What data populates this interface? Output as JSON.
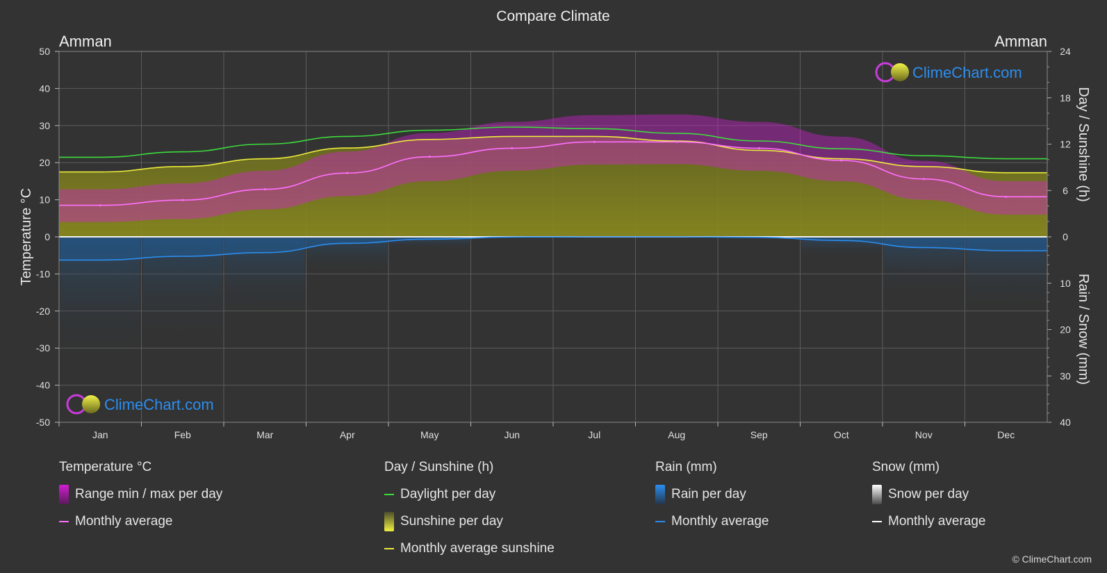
{
  "title": "Compare Climate",
  "location_left": "Amman",
  "location_right": "Amman",
  "watermark": "ClimeChart.com",
  "copyright": "© ClimeChart.com",
  "colors": {
    "background": "#333333",
    "grid": "#5c5c5c",
    "temp_range": "#d21ed2",
    "temp_avg": "#ff70ff",
    "daylight": "#3ddc3d",
    "sunshine_fill": "#8c8c1e",
    "sunshine_avg": "#ecec3c",
    "rain": "#1e5a96",
    "rain_avg": "#2b8ef0",
    "snow_avg": "#ffffff",
    "logo_text": "#2b8ef0"
  },
  "chart_data": {
    "type": "area",
    "title": "Compare Climate",
    "categories": [
      "Jan",
      "Feb",
      "Mar",
      "Apr",
      "May",
      "Jun",
      "Jul",
      "Aug",
      "Sep",
      "Oct",
      "Nov",
      "Dec"
    ],
    "axes": {
      "left": {
        "label": "Temperature °C",
        "min": -50,
        "max": 50,
        "ticks": [
          50,
          40,
          30,
          20,
          10,
          0,
          -10,
          -20,
          -30,
          -40,
          -50
        ]
      },
      "right_top": {
        "label": "Day / Sunshine (h)",
        "min": 0,
        "max": 24,
        "ticks": [
          24,
          18,
          12,
          6,
          0
        ]
      },
      "right_bottom": {
        "label": "Rain / Snow (mm)",
        "min": 0,
        "max": 40,
        "ticks": [
          10,
          20,
          30,
          40
        ]
      }
    },
    "grid": true,
    "series": [
      {
        "name": "Monthly average",
        "group": "Temperature °C",
        "unit": "°C",
        "values": [
          8.5,
          9.9,
          12.8,
          17.2,
          21.6,
          23.9,
          25.6,
          25.6,
          23.9,
          20.6,
          15.6,
          10.8
        ]
      },
      {
        "name": "Range max per day",
        "group": "Temperature °C",
        "unit": "°C",
        "values": [
          12.8,
          14.4,
          17.8,
          23.0,
          28.0,
          31.0,
          32.8,
          33.0,
          31.0,
          27.0,
          20.5,
          15.0
        ]
      },
      {
        "name": "Range min per day",
        "group": "Temperature °C",
        "unit": "°C",
        "values": [
          4.0,
          4.8,
          7.4,
          11.0,
          15.0,
          17.8,
          19.5,
          19.6,
          17.8,
          15.0,
          10.0,
          6.0
        ]
      },
      {
        "name": "Daylight per day",
        "group": "Day / Sunshine (h)",
        "unit": "h",
        "values": [
          10.3,
          11.0,
          12.0,
          13.0,
          13.8,
          14.2,
          14.0,
          13.4,
          12.4,
          11.4,
          10.5,
          10.1
        ]
      },
      {
        "name": "Monthly average sunshine",
        "group": "Day / Sunshine (h)",
        "unit": "h",
        "values": [
          8.4,
          9.1,
          10.1,
          11.5,
          12.6,
          13.0,
          13.0,
          12.4,
          11.2,
          10.1,
          9.1,
          8.3
        ]
      },
      {
        "name": "Monthly average",
        "group": "Rain (mm)",
        "unit": "mm",
        "values": [
          5.0,
          4.2,
          3.4,
          1.4,
          0.5,
          0.05,
          0.0,
          0.0,
          0.1,
          0.8,
          2.3,
          3.0
        ]
      },
      {
        "name": "Monthly average",
        "group": "Snow (mm)",
        "unit": "mm",
        "values": [
          0,
          0,
          0,
          0,
          0,
          0,
          0,
          0,
          0,
          0,
          0,
          0
        ]
      }
    ]
  },
  "legend": {
    "groups": [
      {
        "title": "Temperature °C",
        "items": [
          {
            "label": "Range min / max per day",
            "kind": "box",
            "color": "#d21ed2"
          },
          {
            "label": "Monthly average",
            "kind": "line",
            "color": "#ff70ff"
          }
        ]
      },
      {
        "title": "Day / Sunshine (h)",
        "items": [
          {
            "label": "Daylight per day",
            "kind": "line",
            "color": "#3ddc3d"
          },
          {
            "label": "Sunshine per day",
            "kind": "box",
            "color": "#c8c832"
          },
          {
            "label": "Monthly average sunshine",
            "kind": "line",
            "color": "#ecec3c"
          }
        ]
      },
      {
        "title": "Rain (mm)",
        "items": [
          {
            "label": "Rain per day",
            "kind": "box",
            "color": "#2b8ef0"
          },
          {
            "label": "Monthly average",
            "kind": "line",
            "color": "#2b8ef0"
          }
        ]
      },
      {
        "title": "Snow (mm)",
        "items": [
          {
            "label": "Snow per day",
            "kind": "box",
            "color": "#d8d8d8"
          },
          {
            "label": "Monthly average",
            "kind": "line",
            "color": "#ffffff"
          }
        ]
      }
    ]
  }
}
